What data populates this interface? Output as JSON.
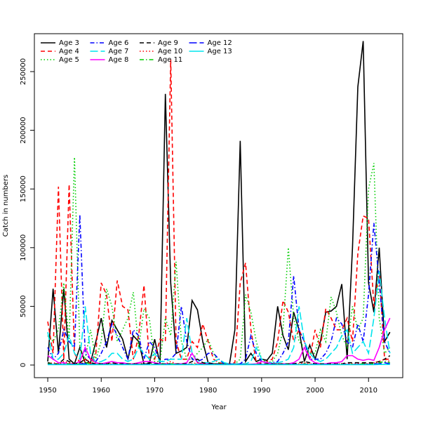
{
  "chart_data": {
    "type": "line",
    "xlabel": "Year",
    "ylabel": "Catch in numbers",
    "x": [
      1950,
      1951,
      1952,
      1953,
      1954,
      1955,
      1956,
      1957,
      1958,
      1959,
      1960,
      1961,
      1962,
      1963,
      1964,
      1965,
      1966,
      1967,
      1968,
      1969,
      1970,
      1971,
      1972,
      1973,
      1974,
      1975,
      1976,
      1977,
      1978,
      1979,
      1980,
      1981,
      1982,
      1983,
      1984,
      1985,
      1986,
      1987,
      1988,
      1989,
      1990,
      1991,
      1992,
      1993,
      1994,
      1995,
      1996,
      1997,
      1998,
      1999,
      2000,
      2001,
      2002,
      2003,
      2004,
      2005,
      2006,
      2007,
      2008,
      2009,
      2010,
      2011,
      2012,
      2013,
      2014
    ],
    "xlim": [
      1947.5,
      2016.4
    ],
    "xticks": [
      1950,
      1960,
      1970,
      1980,
      1990,
      2000,
      2010
    ],
    "ylim": [
      -10766,
      282300
    ],
    "yticks": [
      0,
      50000,
      100000,
      150000,
      200000,
      250000
    ],
    "legend": "top-left",
    "series": [
      {
        "name": "Age 3",
        "color": "#000000",
        "linestyle": "solid",
        "values": [
          3000,
          65000,
          10000,
          65000,
          5000,
          1000,
          15000,
          2000,
          2000,
          20000,
          40000,
          15000,
          38000,
          30000,
          22000,
          5000,
          25000,
          20000,
          1000,
          1000,
          22000,
          1000,
          231000,
          70000,
          10000,
          12000,
          15000,
          55000,
          47000,
          20000,
          2000,
          1000,
          1000,
          1000,
          1000,
          30000,
          191000,
          3000,
          10000,
          3000,
          5000,
          4000,
          10000,
          50000,
          25000,
          13000,
          45000,
          30000,
          3000,
          17000,
          5000,
          20000,
          45000,
          46000,
          50000,
          69000,
          5000,
          100000,
          237000,
          276000,
          70000,
          45000,
          100000,
          20000,
          28000
        ]
      },
      {
        "name": "Age 4",
        "color": "#ff0000",
        "linestyle": "dashed",
        "values": [
          37000,
          10000,
          152000,
          5000,
          154000,
          10000,
          2000,
          5000,
          1000,
          10000,
          70000,
          60000,
          20000,
          72000,
          50000,
          47000,
          5000,
          25000,
          68000,
          5000,
          5000,
          22000,
          20000,
          260000,
          20000,
          5000,
          5000,
          20000,
          15000,
          35000,
          20000,
          5000,
          2000,
          1000,
          1000,
          2000,
          70000,
          87000,
          30000,
          2000,
          2000,
          3000,
          5000,
          20000,
          55000,
          45000,
          20000,
          30000,
          20000,
          5000,
          30000,
          15000,
          48000,
          40000,
          30000,
          30000,
          40000,
          20000,
          95000,
          127000,
          125000,
          50000,
          80000,
          5000,
          5000
        ]
      },
      {
        "name": "Age 5",
        "color": "#00cd00",
        "linestyle": "dotted",
        "values": [
          25000,
          20000,
          30000,
          70000,
          20000,
          177000,
          15000,
          5000,
          30000,
          5000,
          20000,
          65000,
          50000,
          20000,
          30000,
          40000,
          62000,
          15000,
          48000,
          40000,
          3000,
          3000,
          40000,
          25000,
          88000,
          20000,
          5000,
          5000,
          10000,
          15000,
          22000,
          10000,
          2000,
          1000,
          1000,
          1000,
          5000,
          60000,
          45000,
          20000,
          5000,
          2000,
          3000,
          10000,
          30000,
          100000,
          40000,
          20000,
          15000,
          10000,
          10000,
          30000,
          20000,
          58000,
          45000,
          25000,
          15000,
          50000,
          30000,
          40000,
          150000,
          172000,
          40000,
          10000,
          15000
        ]
      },
      {
        "name": "Age 6",
        "color": "#0000ff",
        "linestyle": "dotdash",
        "values": [
          15000,
          5000,
          10000,
          30000,
          20000,
          15000,
          128000,
          10000,
          5000,
          3000,
          10000,
          20000,
          35000,
          25000,
          15000,
          5000,
          30000,
          25000,
          5000,
          20000,
          15000,
          2000,
          5000,
          5000,
          10000,
          50000,
          20000,
          5000,
          3000,
          5000,
          10000,
          10000,
          5000,
          1000,
          1000,
          1000,
          1000,
          5000,
          25000,
          10000,
          3000,
          2000,
          2000,
          3000,
          10000,
          20000,
          76000,
          30000,
          20000,
          5000,
          5000,
          5000,
          10000,
          20000,
          40000,
          35000,
          20000,
          15000,
          35000,
          20000,
          60000,
          121000,
          70000,
          20000,
          10000
        ]
      },
      {
        "name": "Age 7",
        "color": "#00e5ee",
        "linestyle": "longdash",
        "values": [
          28000,
          5000,
          5000,
          10000,
          25000,
          10000,
          5000,
          50000,
          10000,
          2000,
          3000,
          5000,
          10000,
          10000,
          5000,
          3000,
          5000,
          15000,
          10000,
          5000,
          10000,
          3000,
          3000,
          5000,
          5000,
          5000,
          40000,
          10000,
          3000,
          2000,
          2000,
          3000,
          5000,
          2000,
          1000,
          1000,
          1000,
          1000,
          3000,
          15000,
          5000,
          2000,
          2000,
          2000,
          3000,
          5000,
          15000,
          50000,
          20000,
          10000,
          5000,
          3000,
          5000,
          10000,
          15000,
          25000,
          30000,
          10000,
          15000,
          20000,
          10000,
          40000,
          80000,
          40000,
          10000
        ]
      },
      {
        "name": "Age 8",
        "color": "#ff00ff",
        "linestyle": "solid",
        "values": [
          8000,
          5000,
          2000,
          2000,
          1000,
          1000,
          3000,
          15000,
          5000,
          2000,
          1000,
          2000,
          3000,
          2000,
          2000,
          1000,
          1000,
          2000,
          3000,
          3000,
          2000,
          1000,
          1000,
          1000,
          1000,
          1000,
          2000,
          10000,
          2000,
          1000,
          1000,
          500,
          500,
          500,
          500,
          500,
          500,
          500,
          500,
          1000,
          3000,
          2000,
          1000,
          1000,
          1000,
          1000,
          2000,
          5000,
          15000,
          5000,
          2000,
          1000,
          1000,
          2000,
          2000,
          3000,
          8000,
          8000,
          5000,
          4000,
          5000,
          4000,
          15000,
          30000,
          40000
        ]
      },
      {
        "name": "Age 9",
        "color": "#000000",
        "linestyle": "dashed",
        "values": [
          2000,
          1000,
          1000,
          5000,
          3000,
          1000,
          2000,
          5000,
          2000,
          1000,
          1000,
          1000,
          2000,
          1000,
          1000,
          1000,
          1000,
          1000,
          1000,
          2000,
          1000,
          1000,
          1000,
          1000,
          1000,
          1000,
          1000,
          3000,
          5000,
          2000,
          1000,
          500,
          500,
          500,
          500,
          500,
          500,
          500,
          500,
          500,
          1000,
          1000,
          1000,
          1000,
          1000,
          1000,
          1000,
          2000,
          3000,
          2000,
          1000,
          1000,
          1000,
          1000,
          1000,
          1000,
          2000,
          2000,
          2000,
          2000,
          2000,
          2000,
          3000,
          5000,
          8000
        ]
      },
      {
        "name": "Age 10",
        "color": "#ff0000",
        "linestyle": "dotted",
        "values": [
          1000,
          2000,
          1000,
          3000,
          2000,
          1000,
          1000,
          3000,
          5000,
          1000,
          500,
          1000,
          1000,
          1000,
          500,
          500,
          1000,
          1000,
          1000,
          500,
          500,
          500,
          1000,
          3000,
          1000,
          500,
          500,
          1000,
          2000,
          1000,
          500,
          500,
          500,
          500,
          500,
          500,
          500,
          500,
          500,
          500,
          500,
          500,
          500,
          1000,
          1000,
          500,
          500,
          1000,
          2000,
          1000,
          500,
          500,
          500,
          500,
          1000,
          1000,
          1000,
          1000,
          1000,
          1000,
          1000,
          2000,
          3000,
          5000,
          3000
        ]
      },
      {
        "name": "Age 11",
        "color": "#00cd00",
        "linestyle": "dotdash",
        "values": [
          1000,
          1000,
          500,
          1000,
          1000,
          500,
          1000,
          2000,
          1000,
          500,
          500,
          500,
          500,
          500,
          500,
          500,
          500,
          500,
          500,
          500,
          500,
          500,
          500,
          1000,
          500,
          500,
          500,
          500,
          1000,
          500,
          500,
          500,
          500,
          500,
          500,
          500,
          500,
          500,
          500,
          500,
          500,
          500,
          500,
          500,
          500,
          500,
          500,
          500,
          1000,
          500,
          500,
          500,
          500,
          500,
          500,
          500,
          500,
          500,
          500,
          1000,
          1000,
          1000,
          2000,
          3000,
          2000
        ]
      },
      {
        "name": "Age 12",
        "color": "#0000ff",
        "linestyle": "longdash",
        "values": [
          500,
          500,
          500,
          500,
          500,
          500,
          1000,
          1000,
          500,
          500,
          500,
          500,
          500,
          500,
          500,
          500,
          500,
          500,
          500,
          500,
          500,
          500,
          500,
          500,
          500,
          500,
          500,
          500,
          500,
          500,
          500,
          500,
          500,
          500,
          500,
          500,
          500,
          500,
          500,
          500,
          500,
          500,
          500,
          500,
          500,
          500,
          500,
          500,
          500,
          500,
          500,
          500,
          500,
          500,
          500,
          500,
          500,
          500,
          500,
          500,
          500,
          1000,
          1000,
          2000,
          1000
        ]
      },
      {
        "name": "Age 13",
        "color": "#00e5ee",
        "linestyle": "solid",
        "values": [
          300,
          300,
          300,
          300,
          300,
          300,
          300,
          300,
          300,
          300,
          300,
          300,
          300,
          300,
          300,
          300,
          300,
          300,
          300,
          300,
          300,
          300,
          300,
          300,
          300,
          300,
          300,
          300,
          300,
          300,
          300,
          300,
          300,
          300,
          300,
          300,
          300,
          300,
          300,
          300,
          300,
          300,
          300,
          300,
          300,
          300,
          300,
          300,
          300,
          300,
          300,
          300,
          300,
          300,
          300,
          300,
          300,
          300,
          300,
          300,
          300,
          300,
          500,
          500,
          500
        ]
      }
    ]
  }
}
